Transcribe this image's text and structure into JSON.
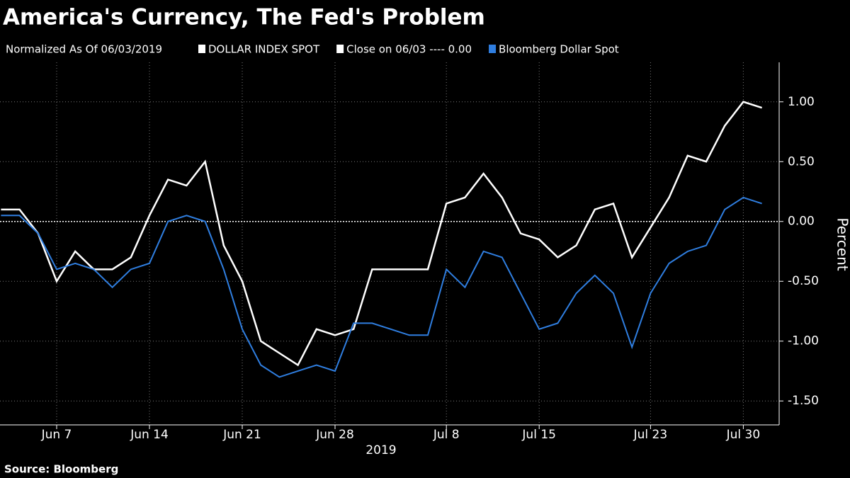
{
  "chart_data": {
    "type": "line",
    "title": "America's Currency, The Fed's Problem",
    "subtitle": "Normalized As Of 06/03/2019",
    "reference_line": {
      "label": "Close on 06/03 ---- 0.00",
      "value": 0
    },
    "x": [
      "2019-06-04",
      "2019-06-05",
      "2019-06-06",
      "2019-06-07",
      "2019-06-10",
      "2019-06-11",
      "2019-06-12",
      "2019-06-13",
      "2019-06-14",
      "2019-06-17",
      "2019-06-18",
      "2019-06-19",
      "2019-06-20",
      "2019-06-21",
      "2019-06-24",
      "2019-06-25",
      "2019-06-26",
      "2019-06-27",
      "2019-06-28",
      "2019-07-01",
      "2019-07-02",
      "2019-07-03",
      "2019-07-04",
      "2019-07-05",
      "2019-07-08",
      "2019-07-09",
      "2019-07-10",
      "2019-07-11",
      "2019-07-12",
      "2019-07-15",
      "2019-07-16",
      "2019-07-17",
      "2019-07-18",
      "2019-07-19",
      "2019-07-22",
      "2019-07-23",
      "2019-07-24",
      "2019-07-25",
      "2019-07-26",
      "2019-07-29",
      "2019-07-30",
      "2019-07-31"
    ],
    "series": [
      {
        "name": "DOLLAR INDEX SPOT",
        "color": "#ffffff",
        "values": [
          0.1,
          0.1,
          -0.1,
          -0.5,
          -0.25,
          -0.4,
          -0.4,
          -0.3,
          0.05,
          0.35,
          0.3,
          0.5,
          -0.2,
          -0.5,
          -1.0,
          -1.1,
          -1.2,
          -0.9,
          -0.95,
          -0.9,
          -0.4,
          -0.4,
          -0.4,
          -0.4,
          0.15,
          0.2,
          0.4,
          0.2,
          -0.1,
          -0.15,
          -0.3,
          -0.2,
          0.1,
          0.15,
          -0.3,
          -0.05,
          0.2,
          0.55,
          0.5,
          0.8,
          1.0,
          0.95
        ]
      },
      {
        "name": "Bloomberg Dollar Spot",
        "color": "#2f7ee0",
        "values": [
          0.05,
          0.05,
          -0.1,
          -0.4,
          -0.35,
          -0.4,
          -0.55,
          -0.4,
          -0.35,
          0.0,
          0.05,
          0.0,
          -0.4,
          -0.9,
          -1.2,
          -1.3,
          -1.25,
          -1.2,
          -1.25,
          -0.85,
          -0.85,
          -0.9,
          -0.95,
          -0.95,
          -0.4,
          -0.55,
          -0.25,
          -0.3,
          -0.6,
          -0.9,
          -0.85,
          -0.6,
          -0.45,
          -0.6,
          -1.05,
          -0.6,
          -0.35,
          -0.25,
          -0.2,
          0.1,
          0.2,
          0.15
        ]
      }
    ],
    "xticks": [
      {
        "value": "2019-06-07",
        "label": "Jun 7"
      },
      {
        "value": "2019-06-14",
        "label": "Jun 14"
      },
      {
        "value": "2019-06-21",
        "label": "Jun 21"
      },
      {
        "value": "2019-06-28",
        "label": "Jun 28"
      },
      {
        "value": "2019-07-08",
        "label": "Jul 8"
      },
      {
        "value": "2019-07-15",
        "label": "Jul 15"
      },
      {
        "value": "2019-07-23",
        "label": "Jul 23"
      },
      {
        "value": "2019-07-30",
        "label": "Jul 30"
      }
    ],
    "xlabel": "2019",
    "ylabel": "Percent",
    "ylim": [
      -1.7,
      1.33
    ],
    "yticks": [
      {
        "value": 1,
        "label": "1.00"
      },
      {
        "value": 0.5,
        "label": "0.50"
      },
      {
        "value": 0,
        "label": "0.00"
      },
      {
        "value": -0.5,
        "label": "-0.50"
      },
      {
        "value": -1,
        "label": "-1.00"
      },
      {
        "value": -1.5,
        "label": "-1.50"
      }
    ],
    "grid": true,
    "source": "Source: Bloomberg"
  }
}
